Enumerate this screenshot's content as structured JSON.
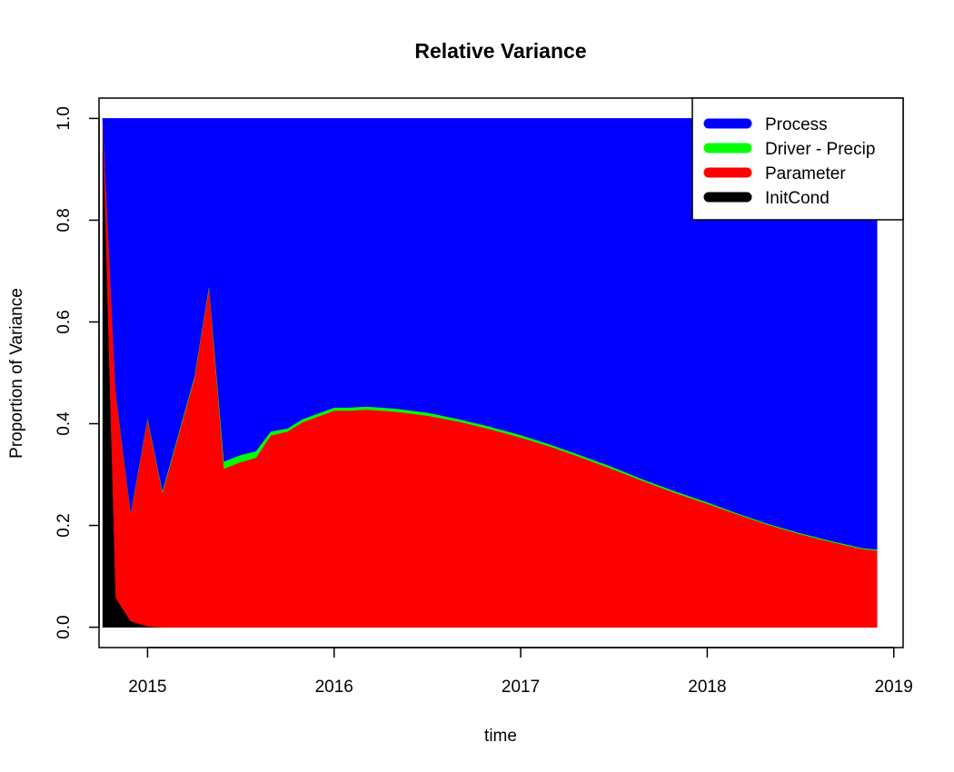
{
  "chart_data": {
    "type": "area",
    "stacked": true,
    "title": "Relative Variance",
    "xlabel": "time",
    "ylabel": "Proportion of Variance",
    "xlim": [
      2014.74,
      2019.05
    ],
    "ylim": [
      -0.04,
      1.04
    ],
    "x_ticks": [
      2015,
      2016,
      2017,
      2018,
      2019
    ],
    "y_ticks": [
      0.0,
      0.2,
      0.4,
      0.6,
      0.8,
      1.0
    ],
    "y_tick_labels": [
      "0.0",
      "0.2",
      "0.4",
      "0.6",
      "0.8",
      "1.0"
    ],
    "x_tick_labels": [
      "2015",
      "2016",
      "2017",
      "2018",
      "2019"
    ],
    "grid": false,
    "legend_position": "top-right",
    "x": [
      2014.76,
      2014.83,
      2014.91,
      2015.0,
      2015.08,
      2015.25,
      2015.33,
      2015.41,
      2015.5,
      2015.58,
      2015.66,
      2015.75,
      2015.83,
      2016.0,
      2016.08,
      2016.17,
      2016.33,
      2016.5,
      2016.66,
      2016.83,
      2017.0,
      2017.17,
      2017.33,
      2017.5,
      2017.66,
      2017.83,
      2018.0,
      2018.17,
      2018.33,
      2018.5,
      2018.66,
      2018.83,
      2018.91
    ],
    "series": [
      {
        "name": "InitCond",
        "color": "#000000",
        "values": [
          1.0,
          0.058,
          0.012,
          0.002,
          0.0,
          0,
          0,
          0,
          0,
          0,
          0,
          0,
          0,
          0,
          0,
          0,
          0,
          0,
          0,
          0,
          0,
          0,
          0,
          0,
          0,
          0,
          0,
          0,
          0,
          0,
          0,
          0,
          0
        ]
      },
      {
        "name": "Parameter",
        "color": "#ff0000",
        "values": [
          0.0,
          0.402,
          0.213,
          0.408,
          0.265,
          0.488,
          0.67,
          0.312,
          0.325,
          0.333,
          0.377,
          0.385,
          0.403,
          0.426,
          0.426,
          0.428,
          0.424,
          0.416,
          0.405,
          0.39,
          0.373,
          0.354,
          0.333,
          0.31,
          0.287,
          0.264,
          0.243,
          0.221,
          0.201,
          0.183,
          0.168,
          0.154,
          0.151
        ]
      },
      {
        "name": "Driver - Precip",
        "color": "#00ff00",
        "values": [
          0.0,
          0.002,
          0.002,
          0.003,
          0.004,
          0.004,
          0.004,
          0.014,
          0.014,
          0.013,
          0.008,
          0.006,
          0.006,
          0.006,
          0.006,
          0.006,
          0.006,
          0.006,
          0.005,
          0.005,
          0.005,
          0.004,
          0.004,
          0.004,
          0.003,
          0.003,
          0.003,
          0.002,
          0.002,
          0.002,
          0.002,
          0.002,
          0.002
        ]
      },
      {
        "name": "Process",
        "color": "#0000ff",
        "values": [
          0.0,
          0.538,
          0.773,
          0.587,
          0.731,
          0.508,
          0.326,
          0.674,
          0.661,
          0.654,
          0.615,
          0.609,
          0.591,
          0.568,
          0.568,
          0.566,
          0.57,
          0.578,
          0.59,
          0.605,
          0.622,
          0.642,
          0.663,
          0.686,
          0.71,
          0.733,
          0.754,
          0.777,
          0.797,
          0.815,
          0.83,
          0.844,
          0.847
        ]
      }
    ],
    "legend": [
      {
        "label": "Process",
        "color": "#0000ff"
      },
      {
        "label": "Driver - Precip",
        "color": "#00ff00"
      },
      {
        "label": "Parameter",
        "color": "#ff0000"
      },
      {
        "label": "InitCond",
        "color": "#000000"
      }
    ]
  }
}
